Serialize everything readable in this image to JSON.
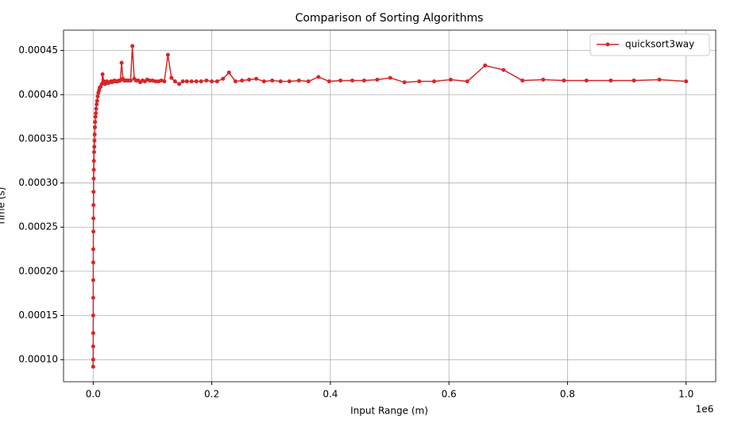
{
  "chart_data": {
    "type": "line",
    "title": "Comparison of Sorting Algorithms",
    "x_label": "Input Range (m)",
    "y_label": "Time (s)",
    "x_offset_label": "1e6",
    "xlim": [
      -50000,
      1050000
    ],
    "ylim": [
      7.5e-05,
      0.000473
    ],
    "xticks": [
      {
        "value": 0,
        "label": "0.0"
      },
      {
        "value": 200000,
        "label": "0.2"
      },
      {
        "value": 400000,
        "label": "0.4"
      },
      {
        "value": 600000,
        "label": "0.6"
      },
      {
        "value": 800000,
        "label": "0.8"
      },
      {
        "value": 1000000,
        "label": "1.0"
      }
    ],
    "yticks": [
      {
        "value": 0.0001,
        "label": "0.00010"
      },
      {
        "value": 0.00015,
        "label": "0.00015"
      },
      {
        "value": 0.0002,
        "label": "0.00020"
      },
      {
        "value": 0.00025,
        "label": "0.00025"
      },
      {
        "value": 0.0003,
        "label": "0.00030"
      },
      {
        "value": 0.00035,
        "label": "0.00035"
      },
      {
        "value": 0.0004,
        "label": "0.00040"
      },
      {
        "value": 0.00045,
        "label": "0.00045"
      }
    ],
    "grid": true,
    "legend_position": "upper-right",
    "x": [
      1,
      10,
      20,
      30,
      50,
      70,
      100,
      150,
      200,
      300,
      400,
      500,
      600,
      800,
      1000,
      1200,
      1500,
      1900,
      2200,
      2500,
      2900,
      3300,
      3800,
      4400,
      5000,
      5800,
      6600,
      7600,
      8700,
      10000,
      11000,
      12600,
      14500,
      15800,
      18000,
      20000,
      22900,
      25000,
      27500,
      30000,
      31600,
      33100,
      34700,
      36300,
      38000,
      39800,
      41700,
      43700,
      45700,
      47900,
      50100,
      52500,
      55000,
      57500,
      60300,
      63100,
      66100,
      69200,
      72400,
      75900,
      79400,
      83200,
      87100,
      91200,
      95500,
      100000,
      105000,
      110000,
      115000,
      120000,
      126000,
      132000,
      138000,
      145000,
      151000,
      158000,
      166000,
      174000,
      182000,
      191000,
      200000,
      209000,
      219000,
      229000,
      240000,
      251000,
      263000,
      275000,
      288000,
      302000,
      316000,
      331000,
      347000,
      363000,
      380000,
      398000,
      417000,
      437000,
      457000,
      479000,
      501000,
      525000,
      550000,
      575000,
      603000,
      631000,
      661000,
      692000,
      724000,
      759000,
      794000,
      832000,
      873000,
      912000,
      955000,
      1000000
    ],
    "series": [
      {
        "name": "quicksort3way",
        "color": "#d62728",
        "values": [
          9.2e-05,
          0.0001,
          0.000115,
          0.00013,
          0.00015,
          0.00017,
          0.00019,
          0.00021,
          0.000225,
          0.000245,
          0.00026,
          0.000275,
          0.00029,
          0.000305,
          0.000315,
          0.000325,
          0.000335,
          0.000341,
          0.000348,
          0.000355,
          0.000363,
          0.000369,
          0.000375,
          0.000379,
          0.000384,
          0.000389,
          0.000393,
          0.000398,
          0.000402,
          0.000405,
          0.000408,
          0.000409,
          0.000412,
          0.000423,
          0.000415,
          0.000412,
          0.000415,
          0.000413,
          0.000414,
          0.000415,
          0.000414,
          0.000415,
          0.000415,
          0.000416,
          0.000415,
          0.000415,
          0.000415,
          0.000416,
          0.000416,
          0.000436,
          0.000418,
          0.000416,
          0.000416,
          0.000416,
          0.000416,
          0.000416,
          0.000455,
          0.000418,
          0.000416,
          0.000416,
          0.000414,
          0.000416,
          0.000415,
          0.000417,
          0.000416,
          0.000416,
          0.000415,
          0.000415,
          0.000416,
          0.000415,
          0.000445,
          0.000419,
          0.000415,
          0.000412,
          0.000415,
          0.000415,
          0.000415,
          0.000415,
          0.000415,
          0.000416,
          0.000415,
          0.000415,
          0.000418,
          0.000425,
          0.000415,
          0.000416,
          0.000417,
          0.000418,
          0.000415,
          0.000416,
          0.000415,
          0.000415,
          0.000416,
          0.000415,
          0.00042,
          0.000415,
          0.000416,
          0.000416,
          0.000416,
          0.000417,
          0.000419,
          0.000414,
          0.000415,
          0.000415,
          0.000417,
          0.000415,
          0.000433,
          0.000428,
          0.000416,
          0.000417,
          0.000416,
          0.000416,
          0.000416,
          0.000416,
          0.000417,
          0.000415
        ]
      }
    ]
  }
}
